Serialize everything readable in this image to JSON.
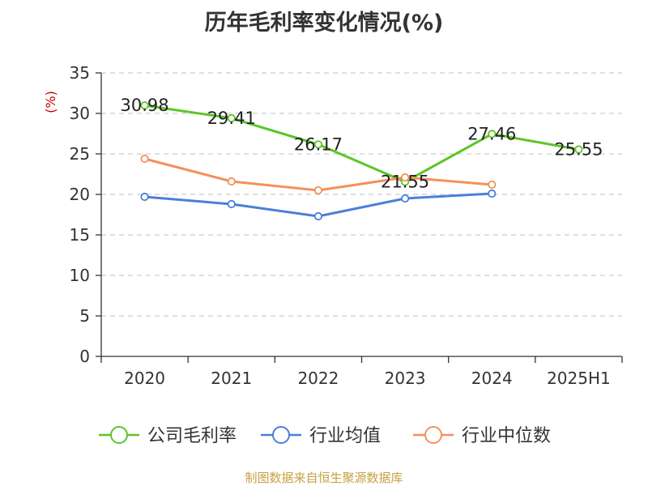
{
  "chart_data": {
    "type": "line",
    "title": "历年毛利率变化情况(%)",
    "ylabel": "(%)",
    "xlabel": "",
    "categories": [
      "2020",
      "2021",
      "2022",
      "2023",
      "2024",
      "2025H1"
    ],
    "ylim": [
      0,
      35
    ],
    "yticks": [
      0,
      5,
      10,
      15,
      20,
      25,
      30,
      35
    ],
    "grid": true,
    "legend_position": "bottom",
    "series": [
      {
        "name": "公司毛利率",
        "color": "#5cc528",
        "values": [
          30.98,
          29.41,
          26.17,
          21.55,
          27.46,
          25.55
        ],
        "labels": [
          "30.98",
          "29.41",
          "26.17",
          "21.55",
          "27.46",
          "25.55"
        ]
      },
      {
        "name": "行业均值",
        "color": "#4a7fd8",
        "values": [
          19.7,
          18.8,
          17.3,
          19.5,
          20.1,
          null
        ]
      },
      {
        "name": "行业中位数",
        "color": "#f5905a",
        "values": [
          24.4,
          21.6,
          20.5,
          22.1,
          21.2,
          null
        ]
      }
    ]
  },
  "source": "制图数据来自恒生聚源数据库"
}
